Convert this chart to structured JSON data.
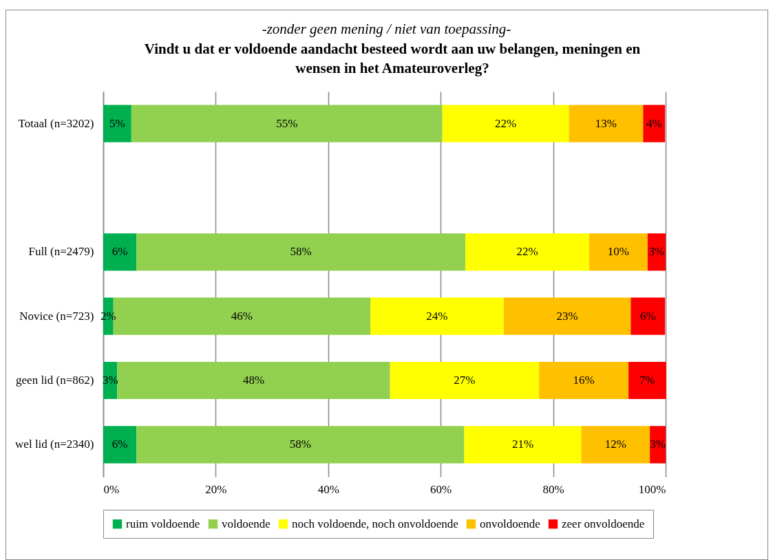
{
  "chart_data": {
    "type": "bar",
    "orientation": "horizontal",
    "stacked": true,
    "subtitle": "-zonder geen mening / niet van toepassing-",
    "title": "Vindt u dat er voldoende aandacht besteed wordt aan uw belangen, meningen en wensen in het Amateuroverleg?",
    "categories": [
      "Totaal (n=3202)",
      null,
      "Full (n=2479)",
      "Novice (n=723)",
      "geen lid (n=862)",
      "wel lid (n=2340)"
    ],
    "series": [
      {
        "name": "ruim voldoende",
        "color": "#00b050",
        "values": [
          5.0,
          null,
          5.9,
          1.8,
          2.5,
          5.9
        ],
        "value_labels": [
          "5%",
          null,
          "6%",
          "2%",
          "3%",
          "6%"
        ]
      },
      {
        "name": "voldoende",
        "color": "#92d050",
        "values": [
          55.3,
          null,
          58.5,
          45.7,
          48.5,
          58.3
        ],
        "value_labels": [
          "55%",
          null,
          "58%",
          "46%",
          "48%",
          "58%"
        ]
      },
      {
        "name": "noch voldoende, noch onvoldoende",
        "color": "#ffff00",
        "values": [
          22.5,
          null,
          22.0,
          23.7,
          26.5,
          20.8
        ],
        "value_labels": [
          "22%",
          null,
          "22%",
          "24%",
          "27%",
          "21%"
        ]
      },
      {
        "name": "onvoldoende",
        "color": "#ffc000",
        "values": [
          13.2,
          null,
          10.4,
          22.6,
          15.9,
          12.2
        ],
        "value_labels": [
          "13%",
          null,
          "10%",
          "23%",
          "16%",
          "12%"
        ]
      },
      {
        "name": "zeer onvoldoende",
        "color": "#ff0000",
        "values": [
          3.9,
          null,
          3.2,
          6.1,
          6.7,
          2.8
        ],
        "value_labels": [
          "4%",
          null,
          "3%",
          "6%",
          "7%",
          "3%"
        ]
      }
    ],
    "xlim": [
      0,
      100
    ],
    "xticks": [
      {
        "value": 0,
        "label": "0%"
      },
      {
        "value": 20,
        "label": "20%"
      },
      {
        "value": 40,
        "label": "40%"
      },
      {
        "value": 60,
        "label": "60%"
      },
      {
        "value": 80,
        "label": "80%"
      },
      {
        "value": 100,
        "label": "100%"
      }
    ],
    "grid": "x",
    "legend": "bottom"
  }
}
